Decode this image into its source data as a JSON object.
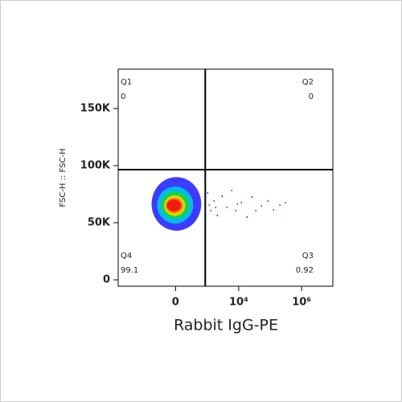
{
  "chart_data": {
    "type": "density-scatter",
    "y_label": "FSC-H :: FSC-H",
    "x_label": "Rabbit IgG-PE",
    "xscale": "biexponential",
    "xlim": [
      -6500,
      9800000
    ],
    "xticks": [
      0,
      {
        "value": 10000,
        "label": "10⁴"
      },
      {
        "value": 1000000,
        "label": "10⁶"
      }
    ],
    "ylim": [
      -5600,
      184500
    ],
    "yticks": [
      0,
      {
        "value": 50000,
        "label": "50K"
      },
      {
        "value": 100000,
        "label": "100K"
      },
      {
        "value": 150000,
        "label": "150K"
      }
    ],
    "gates": {
      "x": 777,
      "y": 96500
    },
    "quadrants": [
      {
        "name": "Q1",
        "value": 0
      },
      {
        "name": "Q2",
        "value": 0
      },
      {
        "name": "Q3",
        "value": 0.92
      },
      {
        "name": "Q4",
        "value": 99.1
      }
    ],
    "density_levels": [
      {
        "color": "#1a1aff",
        "x": [
          -475,
          553
        ],
        "y": [
          43000,
          90000
        ]
      },
      {
        "color": "#00c8e6",
        "x": [
          -285,
          263
        ],
        "y": [
          49300,
          81700
        ]
      },
      {
        "color": "#22d040",
        "x": [
          -188,
          171
        ],
        "y": [
          53500,
          77500
        ]
      },
      {
        "color": "#e6e600",
        "x": [
          -128,
          102
        ],
        "y": [
          56000,
          74000
        ]
      },
      {
        "color": "#ff8000",
        "x": [
          -105,
          75
        ],
        "y": [
          58000,
          72000
        ]
      },
      {
        "color": "#ee1010",
        "x": [
          -90,
          51
        ],
        "y": [
          59900,
          70400
        ]
      }
    ],
    "points": {
      "color": "#1a1aff",
      "x": [
        945,
        1221,
        1571,
        2013,
        2906,
        4176,
        5968,
        8047,
        12170,
        18430,
        26200,
        35200,
        53100,
        85000,
        128200,
        205000,
        309000,
        1075,
        1779,
        9060
      ],
      "y": [
        76000,
        60600,
        69000,
        56300,
        73200,
        63400,
        78200,
        60600,
        67600,
        54900,
        72500,
        60600,
        64800,
        69000,
        61300,
        65500,
        67600,
        65500,
        63400,
        66200
      ]
    }
  }
}
